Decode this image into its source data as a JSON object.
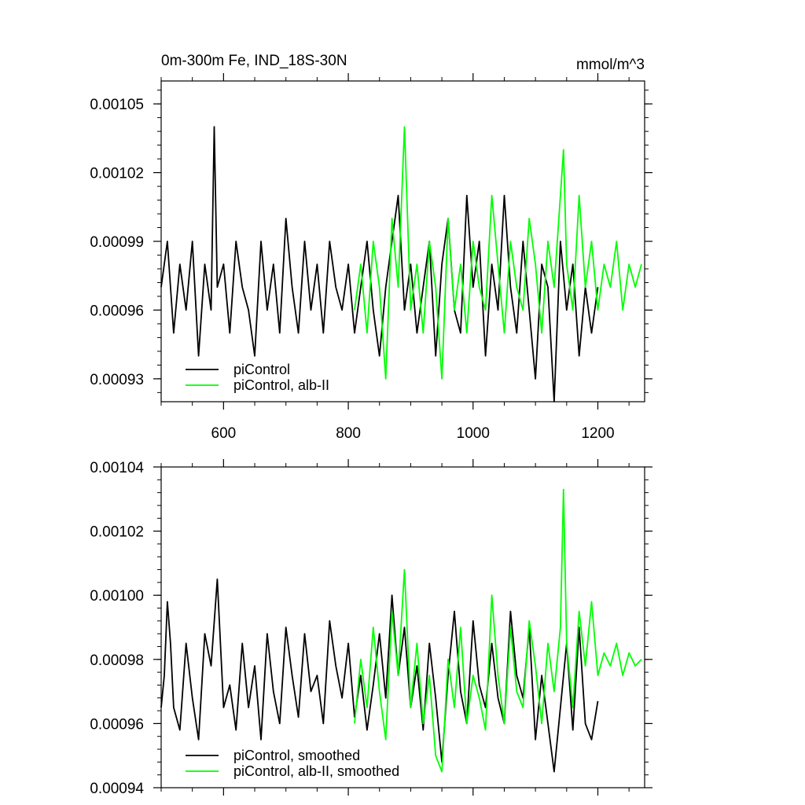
{
  "chart_data": [
    {
      "type": "line",
      "title": "0m-300m Fe, IND_18S-30N",
      "units": "mmol/m^3",
      "xlim": [
        500,
        1275
      ],
      "ylim": [
        0.00092,
        0.00106
      ],
      "x_ticks": [
        600,
        800,
        1000,
        1200
      ],
      "x_tick_labels": [
        "600",
        "800",
        "1000",
        "1200"
      ],
      "y_ticks": [
        0.00093,
        0.00096,
        0.00099,
        0.00102,
        0.00105
      ],
      "y_tick_labels": [
        "0.00093",
        "0.00096",
        "0.00099",
        "0.00102",
        "0.00105"
      ],
      "grid": false,
      "legend_position": "bottom-left",
      "series": [
        {
          "name": "piControl",
          "color": "#000000",
          "x": [
            500,
            510,
            520,
            530,
            540,
            550,
            560,
            570,
            580,
            585,
            590,
            600,
            610,
            620,
            630,
            640,
            650,
            660,
            670,
            680,
            690,
            700,
            710,
            720,
            730,
            740,
            750,
            760,
            770,
            780,
            790,
            800,
            810,
            820,
            830,
            840,
            850,
            860,
            870,
            880,
            890,
            900,
            910,
            920,
            930,
            940,
            950,
            960,
            970,
            980,
            990,
            1000,
            1010,
            1020,
            1030,
            1040,
            1050,
            1060,
            1070,
            1080,
            1090,
            1100,
            1110,
            1120,
            1130,
            1140,
            1150,
            1160,
            1170,
            1180,
            1190,
            1200
          ],
          "y": [
            0.00097,
            0.00099,
            0.00095,
            0.00098,
            0.00096,
            0.00099,
            0.00094,
            0.00098,
            0.00096,
            0.00104,
            0.00097,
            0.00098,
            0.00095,
            0.00099,
            0.00097,
            0.00096,
            0.00094,
            0.00099,
            0.00096,
            0.00098,
            0.00095,
            0.001,
            0.00097,
            0.00095,
            0.00099,
            0.00096,
            0.00098,
            0.00095,
            0.00099,
            0.00097,
            0.00096,
            0.00098,
            0.00095,
            0.00097,
            0.00099,
            0.00096,
            0.00094,
            0.00097,
            0.00099,
            0.00101,
            0.00096,
            0.00098,
            0.00095,
            0.00097,
            0.00099,
            0.00094,
            0.00098,
            0.001,
            0.00096,
            0.00095,
            0.00101,
            0.00097,
            0.00099,
            0.00094,
            0.00098,
            0.00096,
            0.00101,
            0.00097,
            0.00095,
            0.00099,
            0.00096,
            0.00093,
            0.00098,
            0.00097,
            0.00092,
            0.00099,
            0.00096,
            0.00098,
            0.00094,
            0.00097,
            0.00095,
            0.00097
          ]
        },
        {
          "name": "piControl, alb-II",
          "color": "#00ff00",
          "x": [
            810,
            820,
            830,
            840,
            850,
            860,
            870,
            880,
            890,
            900,
            910,
            920,
            930,
            940,
            950,
            960,
            970,
            980,
            990,
            1000,
            1010,
            1020,
            1030,
            1040,
            1050,
            1060,
            1070,
            1080,
            1090,
            1100,
            1110,
            1120,
            1130,
            1140,
            1145,
            1150,
            1160,
            1170,
            1180,
            1190,
            1200,
            1210,
            1220,
            1230,
            1240,
            1250,
            1260,
            1270
          ],
          "y": [
            0.00096,
            0.00098,
            0.00095,
            0.00099,
            0.00097,
            0.00093,
            0.001,
            0.00097,
            0.00104,
            0.00096,
            0.00098,
            0.00095,
            0.00099,
            0.00097,
            0.00093,
            0.001,
            0.00096,
            0.00098,
            0.00095,
            0.00099,
            0.00097,
            0.00096,
            0.00101,
            0.00098,
            0.00095,
            0.00099,
            0.00097,
            0.00096,
            0.001,
            0.00098,
            0.00095,
            0.00099,
            0.00097,
            0.00101,
            0.00103,
            0.00098,
            0.00096,
            0.00101,
            0.00097,
            0.00099,
            0.00096,
            0.00098,
            0.00097,
            0.00099,
            0.00096,
            0.00098,
            0.00097,
            0.00098
          ]
        }
      ]
    },
    {
      "type": "line",
      "xlim": [
        500,
        1275
      ],
      "ylim": [
        0.00094,
        0.00104
      ],
      "x_ticks": [
        600,
        800,
        1000,
        1200
      ],
      "y_ticks": [
        0.00094,
        0.00096,
        0.00098,
        0.001,
        0.00102,
        0.00104
      ],
      "y_tick_labels": [
        "0.00094",
        "0.00096",
        "0.00098",
        "0.00100",
        "0.00102",
        "0.00104"
      ],
      "grid": false,
      "legend_position": "bottom-left",
      "series": [
        {
          "name": "piControl, smoothed",
          "color": "#000000",
          "x": [
            500,
            505,
            510,
            515,
            520,
            530,
            540,
            550,
            560,
            570,
            580,
            590,
            600,
            610,
            620,
            630,
            640,
            650,
            660,
            670,
            680,
            690,
            700,
            710,
            720,
            730,
            740,
            750,
            760,
            770,
            780,
            790,
            800,
            810,
            820,
            830,
            840,
            850,
            860,
            870,
            880,
            890,
            900,
            910,
            920,
            930,
            940,
            950,
            960,
            970,
            980,
            990,
            1000,
            1010,
            1020,
            1030,
            1040,
            1050,
            1060,
            1070,
            1080,
            1090,
            1100,
            1110,
            1120,
            1130,
            1140,
            1150,
            1160,
            1170,
            1180,
            1190,
            1200
          ],
          "y": [
            0.000965,
            0.000975,
            0.000998,
            0.000985,
            0.000965,
            0.000958,
            0.000985,
            0.000968,
            0.000955,
            0.000988,
            0.000978,
            0.001005,
            0.000965,
            0.000972,
            0.000958,
            0.000985,
            0.000965,
            0.000978,
            0.000955,
            0.000988,
            0.00097,
            0.00096,
            0.00099,
            0.000975,
            0.000962,
            0.000988,
            0.00097,
            0.000975,
            0.00096,
            0.000992,
            0.000978,
            0.000968,
            0.000985,
            0.000962,
            0.000975,
            0.000958,
            0.000972,
            0.000988,
            0.000968,
            0.001,
            0.000975,
            0.00099,
            0.000965,
            0.000978,
            0.000958,
            0.000985,
            0.000968,
            0.000948,
            0.000975,
            0.000995,
            0.00097,
            0.00096,
            0.000992,
            0.000972,
            0.000965,
            0.000985,
            0.000968,
            0.00096,
            0.000995,
            0.000975,
            0.000968,
            0.00099,
            0.000955,
            0.000975,
            0.00096,
            0.000945,
            0.000965,
            0.000985,
            0.000958,
            0.00099,
            0.00096,
            0.000955,
            0.000967
          ]
        },
        {
          "name": "piControl, alb-II, smoothed",
          "color": "#00ff00",
          "x": [
            810,
            820,
            830,
            840,
            850,
            860,
            870,
            880,
            890,
            900,
            910,
            920,
            930,
            940,
            950,
            960,
            970,
            980,
            990,
            1000,
            1010,
            1020,
            1030,
            1040,
            1050,
            1060,
            1070,
            1080,
            1090,
            1100,
            1110,
            1120,
            1130,
            1140,
            1145,
            1150,
            1160,
            1170,
            1180,
            1190,
            1200,
            1210,
            1220,
            1230,
            1240,
            1250,
            1260,
            1270
          ],
          "y": [
            0.00096,
            0.00098,
            0.000965,
            0.00099,
            0.00097,
            0.000955,
            0.000995,
            0.000975,
            0.001008,
            0.000965,
            0.000985,
            0.00096,
            0.000975,
            0.00095,
            0.000945,
            0.00098,
            0.000965,
            0.00099,
            0.00096,
            0.000975,
            0.000968,
            0.000958,
            0.001,
            0.000975,
            0.00096,
            0.00099,
            0.00097,
            0.000965,
            0.000992,
            0.000978,
            0.00096,
            0.000985,
            0.00097,
            0.00099,
            0.001033,
            0.000985,
            0.000965,
            0.000995,
            0.000978,
            0.000998,
            0.000975,
            0.000982,
            0.000978,
            0.000985,
            0.000975,
            0.000982,
            0.000978,
            0.00098
          ]
        }
      ]
    }
  ]
}
